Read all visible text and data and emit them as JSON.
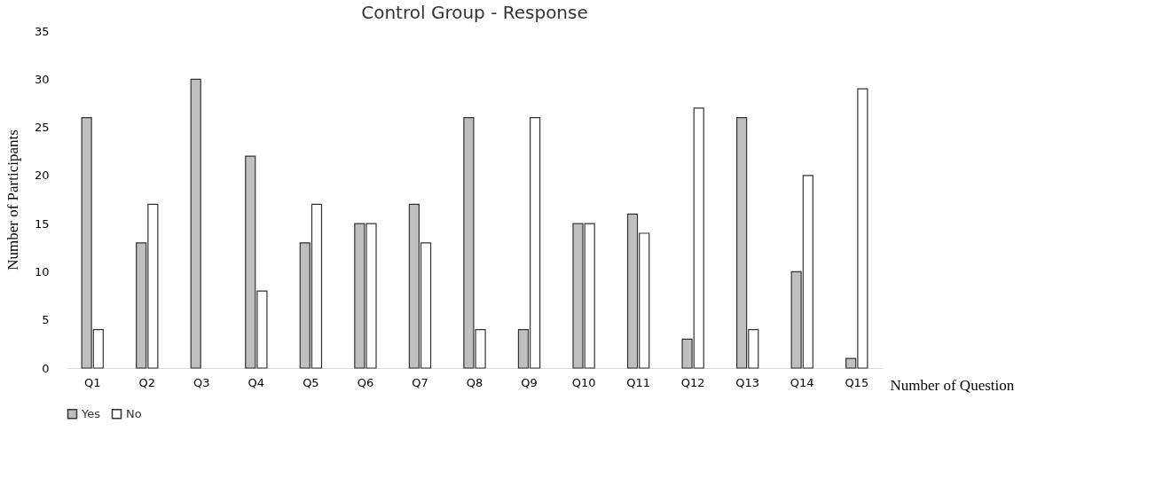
{
  "chart_data": {
    "type": "bar",
    "title": "Control Group - Response",
    "xlabel": "Number of Question",
    "ylabel": "Number of Participants",
    "categories": [
      "Q1",
      "Q2",
      "Q3",
      "Q4",
      "Q5",
      "Q6",
      "Q7",
      "Q8",
      "Q9",
      "Q10",
      "Q11",
      "Q12",
      "Q13",
      "Q14",
      "Q15"
    ],
    "series": [
      {
        "name": "Yes",
        "color": "#bfbfbf",
        "values": [
          26,
          13,
          30,
          22,
          13,
          15,
          17,
          26,
          4,
          15,
          16,
          3,
          26,
          10,
          1
        ]
      },
      {
        "name": "No",
        "color": "#ffffff",
        "values": [
          4,
          17,
          null,
          8,
          17,
          15,
          13,
          4,
          26,
          15,
          14,
          27,
          4,
          20,
          29
        ]
      }
    ],
    "ylim": [
      0,
      35
    ],
    "yticks": [
      0,
      5,
      10,
      15,
      20,
      25,
      30,
      35
    ],
    "grid": false,
    "legend": "bottom"
  }
}
